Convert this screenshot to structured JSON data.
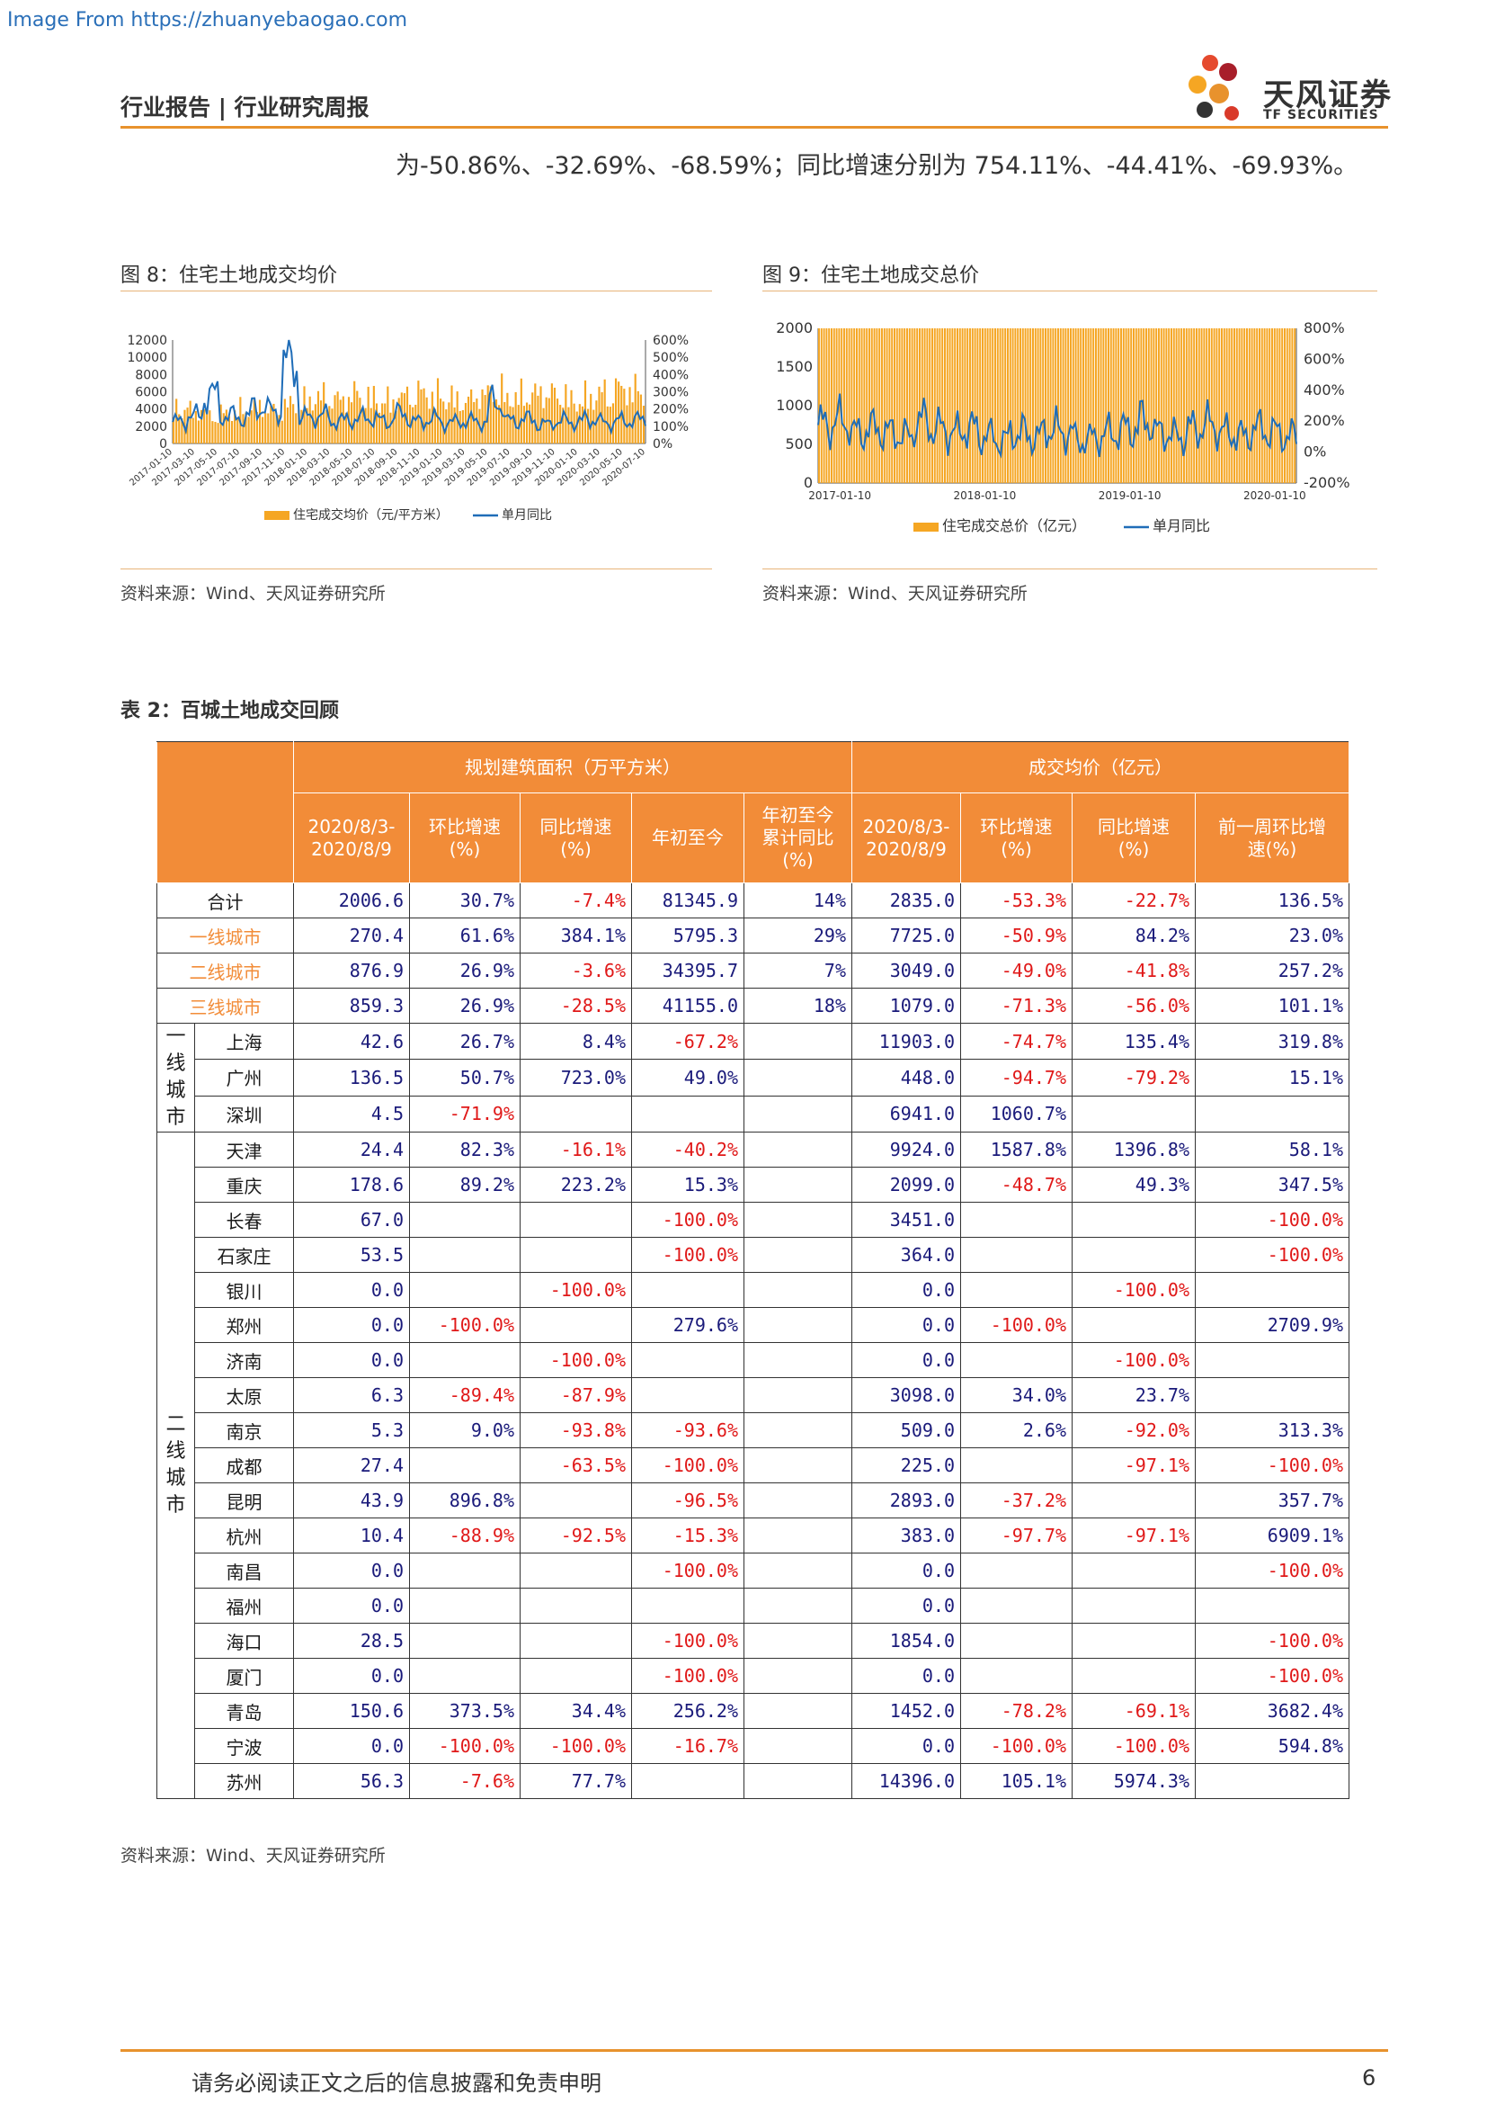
{
  "watermark": "Image From https://zhuanyebaogao.com",
  "header": {
    "title": "行业报告 | 行业研究周报"
  },
  "logo": {
    "cn": "天风证券",
    "en": "TF SECURITIES"
  },
  "intro": "为-50.86%、-32.69%、-68.59%；同比增速分别为 754.11%、-44.41%、-69.93%。",
  "figures": [
    {
      "title": "图 8：住宅土地成交均价",
      "source": "资料来源：Wind、天风证券研究所",
      "legend": [
        "住宅成交均价（元/平方米）",
        "单月同比"
      ],
      "chart_data": {
        "type": "bar-line",
        "left_axis_ticks": [
          "12000",
          "10000",
          "8000",
          "6000",
          "4000",
          "2000",
          "0"
        ],
        "right_axis_ticks": [
          "600%",
          "500%",
          "400%",
          "300%",
          "200%",
          "100%",
          "0%"
        ],
        "ylim_left": [
          0,
          12000
        ],
        "ylim_right": [
          0,
          600
        ],
        "x_ticks": [
          "2017-01-10",
          "2017-03-10",
          "2017-05-10",
          "2017-07-10",
          "2017-09-10",
          "2017-11-10",
          "2018-01-10",
          "2018-03-10",
          "2018-05-10",
          "2018-07-10",
          "2018-09-10",
          "2018-11-10",
          "2019-01-10",
          "2019-03-10",
          "2019-05-10",
          "2019-07-10",
          "2019-09-10",
          "2019-11-10",
          "2020-01-10",
          "2020-03-10",
          "2020-05-10",
          "2020-07-10"
        ],
        "bar_profile": [
          3.5,
          3.2,
          2.8,
          3.0,
          3.4,
          3.6,
          3.2,
          3.8,
          4.2,
          4.6,
          4.3,
          4.8,
          4.5,
          4.2,
          4.6,
          5.0,
          4.8,
          4.5,
          4.2,
          4.8,
          5.2,
          4.5,
          4.8,
          5.0,
          4.8,
          4.2,
          4.6,
          5.0,
          5.4,
          5.2
        ],
        "line_profile": [
          2500,
          3200,
          5600,
          3200,
          3000,
          4200,
          3800,
          9400,
          3000,
          3200,
          2600,
          2800,
          3000,
          2600,
          3400,
          2500,
          2800,
          2400,
          2600,
          2500,
          4800,
          2600,
          2800,
          2200,
          2600,
          2500,
          2800,
          2400,
          2600,
          2700
        ]
      }
    },
    {
      "title": "图 9：住宅土地成交总价",
      "source": "资料来源：Wind、天风证券研究所",
      "legend": [
        "住宅成交总价（亿元）",
        "单月同比"
      ],
      "chart_data": {
        "type": "bar-line",
        "left_axis_ticks": [
          "2000",
          "1500",
          "1000",
          "500",
          "0"
        ],
        "right_axis_ticks": [
          "800%",
          "600%",
          "400%",
          "200%",
          "0%",
          "-200%"
        ],
        "ylim_left": [
          0,
          2000
        ],
        "ylim_right": [
          -200,
          800
        ],
        "x_ticks": [
          "2017-01-10",
          "2018-01-10",
          "2019-01-10",
          "2020-01-10"
        ],
        "bar_profile": [
          600,
          700,
          800,
          650,
          750,
          900,
          1000,
          850,
          900,
          700,
          650,
          800,
          700,
          600,
          750,
          900,
          950,
          850,
          800,
          700,
          750,
          850,
          900,
          850,
          950,
          1000,
          900,
          950,
          1100,
          1000
        ],
        "line_profile": [
          750,
          800,
          650,
          700,
          650,
          600,
          800,
          700,
          650,
          700,
          600,
          550,
          650,
          600,
          700,
          650,
          550,
          600,
          650,
          700,
          800,
          650,
          600,
          700,
          750,
          650,
          600,
          700,
          650,
          600
        ]
      }
    }
  ],
  "table": {
    "title": "表 2：百城土地成交回顾",
    "group_headers": [
      "规划建筑面积（万平方米）",
      "成交均价（亿元）"
    ],
    "sub_headers": [
      [
        "2020/8/3-",
        "2020/8/9"
      ],
      [
        "环比增速",
        "(%)"
      ],
      [
        "同比增速",
        "(%)"
      ],
      [
        "年初至今"
      ],
      [
        "年初至今",
        "累计同比",
        "(%)"
      ],
      [
        "2020/8/3-",
        "2020/8/9"
      ],
      [
        "环比增速",
        "(%)"
      ],
      [
        "同比增速",
        "(%)"
      ],
      [
        "前一周环比增",
        "速(%)"
      ]
    ],
    "tier_rows": [
      {
        "name": "合计",
        "cells": [
          "2006.6",
          "30.7%",
          "-7.4%",
          "81345.9",
          "14%",
          "2835.0",
          "-53.3%",
          "-22.7%",
          "136.5%"
        ]
      },
      {
        "name": "一线城市",
        "cells": [
          "270.4",
          "61.6%",
          "384.1%",
          "5795.3",
          "29%",
          "7725.0",
          "-50.9%",
          "84.2%",
          "23.0%"
        ]
      },
      {
        "name": "二线城市",
        "cells": [
          "876.9",
          "26.9%",
          "-3.6%",
          "34395.7",
          "7%",
          "3049.0",
          "-49.0%",
          "-41.8%",
          "257.2%"
        ]
      },
      {
        "name": "三线城市",
        "cells": [
          "859.3",
          "26.9%",
          "-28.5%",
          "41155.0",
          "18%",
          "1079.0",
          "-71.3%",
          "-56.0%",
          "101.1%"
        ]
      }
    ],
    "groups": [
      {
        "label": "一线城市",
        "rows": [
          {
            "name": "上海",
            "cells": [
              "42.6",
              "26.7%",
              "8.4%",
              "-67.2%",
              "",
              "11903.0",
              "-74.7%",
              "135.4%",
              "319.8%"
            ]
          },
          {
            "name": "广州",
            "cells": [
              "136.5",
              "50.7%",
              "723.0%",
              "49.0%",
              "",
              "448.0",
              "-94.7%",
              "-79.2%",
              "15.1%"
            ]
          },
          {
            "name": "深圳",
            "cells": [
              "4.5",
              "-71.9%",
              "",
              "",
              "",
              "6941.0",
              "1060.7%",
              "",
              ""
            ]
          }
        ]
      },
      {
        "label": "二线城市",
        "rows": [
          {
            "name": "天津",
            "cells": [
              "24.4",
              "82.3%",
              "-16.1%",
              "-40.2%",
              "",
              "9924.0",
              "1587.8%",
              "1396.8%",
              "58.1%"
            ]
          },
          {
            "name": "重庆",
            "cells": [
              "178.6",
              "89.2%",
              "223.2%",
              "15.3%",
              "",
              "2099.0",
              "-48.7%",
              "49.3%",
              "347.5%"
            ]
          },
          {
            "name": "长春",
            "cells": [
              "67.0",
              "",
              "",
              "-100.0%",
              "",
              "3451.0",
              "",
              "",
              "-100.0%"
            ]
          },
          {
            "name": "石家庄",
            "cells": [
              "53.5",
              "",
              "",
              "-100.0%",
              "",
              "364.0",
              "",
              "",
              "-100.0%"
            ]
          },
          {
            "name": "银川",
            "cells": [
              "0.0",
              "",
              "-100.0%",
              "",
              "",
              "0.0",
              "",
              "-100.0%",
              ""
            ]
          },
          {
            "name": "郑州",
            "cells": [
              "0.0",
              "-100.0%",
              "",
              "279.6%",
              "",
              "0.0",
              "-100.0%",
              "",
              "2709.9%"
            ]
          },
          {
            "name": "济南",
            "cells": [
              "0.0",
              "",
              "-100.0%",
              "",
              "",
              "0.0",
              "",
              "-100.0%",
              ""
            ]
          },
          {
            "name": "太原",
            "cells": [
              "6.3",
              "-89.4%",
              "-87.9%",
              "",
              "",
              "3098.0",
              "34.0%",
              "23.7%",
              ""
            ]
          },
          {
            "name": "南京",
            "cells": [
              "5.3",
              "9.0%",
              "-93.8%",
              "-93.6%",
              "",
              "509.0",
              "2.6%",
              "-92.0%",
              "313.3%"
            ]
          },
          {
            "name": "成都",
            "cells": [
              "27.4",
              "",
              "-63.5%",
              "-100.0%",
              "",
              "225.0",
              "",
              "-97.1%",
              "-100.0%"
            ]
          },
          {
            "name": "昆明",
            "cells": [
              "43.9",
              "896.8%",
              "",
              "-96.5%",
              "",
              "2893.0",
              "-37.2%",
              "",
              "357.7%"
            ]
          },
          {
            "name": "杭州",
            "cells": [
              "10.4",
              "-88.9%",
              "-92.5%",
              "-15.3%",
              "",
              "383.0",
              "-97.7%",
              "-97.1%",
              "6909.1%"
            ]
          },
          {
            "name": "南昌",
            "cells": [
              "0.0",
              "",
              "",
              "-100.0%",
              "",
              "0.0",
              "",
              "",
              "-100.0%"
            ]
          },
          {
            "name": "福州",
            "cells": [
              "0.0",
              "",
              "",
              "",
              "",
              "0.0",
              "",
              "",
              ""
            ]
          },
          {
            "name": "海口",
            "cells": [
              "28.5",
              "",
              "",
              "-100.0%",
              "",
              "1854.0",
              "",
              "",
              "-100.0%"
            ]
          },
          {
            "name": "厦门",
            "cells": [
              "0.0",
              "",
              "",
              "-100.0%",
              "",
              "0.0",
              "",
              "",
              "-100.0%"
            ]
          },
          {
            "name": "青岛",
            "cells": [
              "150.6",
              "373.5%",
              "34.4%",
              "256.2%",
              "",
              "1452.0",
              "-78.2%",
              "-69.1%",
              "3682.4%"
            ]
          },
          {
            "name": "宁波",
            "cells": [
              "0.0",
              "-100.0%",
              "-100.0%",
              "-16.7%",
              "",
              "0.0",
              "-100.0%",
              "-100.0%",
              "594.8%"
            ]
          },
          {
            "name": "苏州",
            "cells": [
              "56.3",
              "-7.6%",
              "77.7%",
              "",
              "",
              "14396.0",
              "105.1%",
              "5974.3%",
              ""
            ]
          }
        ]
      }
    ],
    "source": "资料来源：Wind、天风证券研究所"
  },
  "footer": {
    "disclaimer": "请务必阅读正文之后的信息披露和免责申明",
    "page": "6"
  },
  "colors": {
    "accent": "#e8922d",
    "bar": "#f5a623",
    "line": "#1f6db8",
    "negative": "#e01818",
    "positive": "#1a1a7a"
  }
}
